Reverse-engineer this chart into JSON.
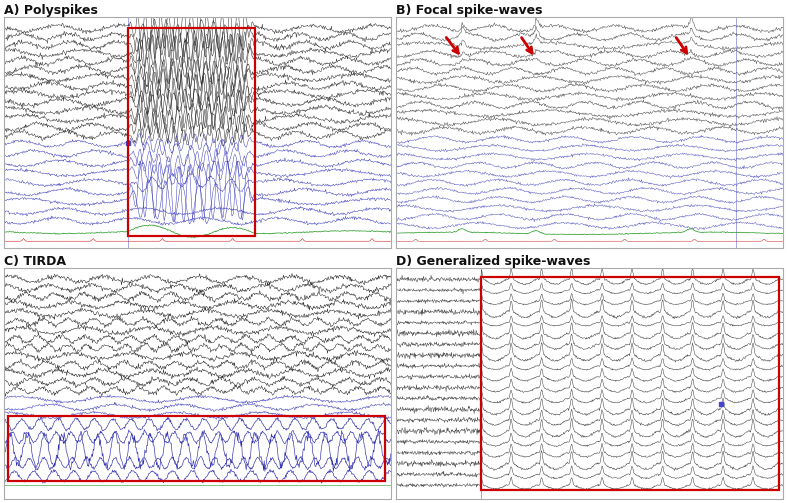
{
  "panels": [
    "A) Polyspikes",
    "B) Focal spike-waves",
    "C) TIRDA",
    "D) Generalized spike-waves"
  ],
  "background": "#ffffff",
  "red_box_color": "#cc0000",
  "arrow_color": "#cc0000"
}
